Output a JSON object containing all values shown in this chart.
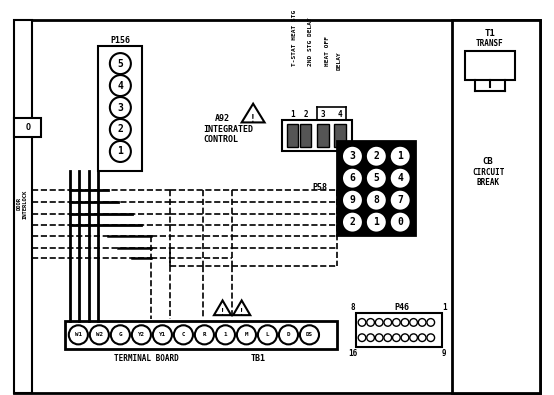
{
  "bg_color": "#ffffff",
  "line_color": "#000000",
  "figsize": [
    5.54,
    3.95
  ],
  "dpi": 100,
  "p156_pins": [
    "5",
    "4",
    "3",
    "2",
    "1"
  ],
  "p58_pins": [
    [
      "3",
      "2",
      "1"
    ],
    [
      "6",
      "5",
      "4"
    ],
    [
      "9",
      "8",
      "7"
    ],
    [
      "2",
      "1",
      "0"
    ]
  ],
  "terminal_labels": [
    "W1",
    "W2",
    "G",
    "Y2",
    "Y1",
    "C",
    "R",
    "1",
    "M",
    "L",
    "D",
    "DS"
  ]
}
